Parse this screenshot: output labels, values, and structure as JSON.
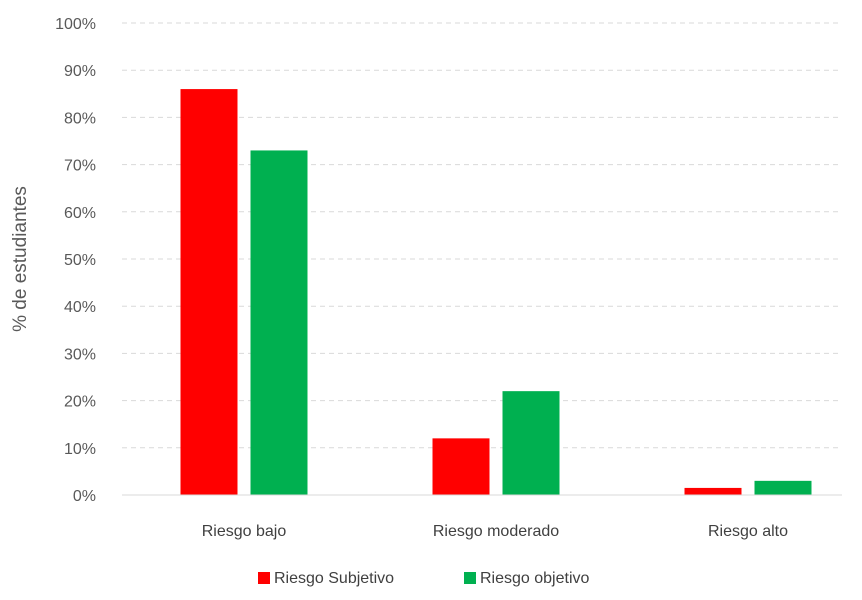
{
  "chart_data": {
    "type": "bar",
    "title": "",
    "xlabel": "",
    "ylabel": "% de estudiantes",
    "ylim": [
      0,
      100
    ],
    "yticks": [
      "0%",
      "10%",
      "20%",
      "30%",
      "40%",
      "50%",
      "60%",
      "70%",
      "80%",
      "90%",
      "100%"
    ],
    "yticks_values": [
      0,
      10,
      20,
      30,
      40,
      50,
      60,
      70,
      80,
      90,
      100
    ],
    "categories": [
      "Riesgo bajo",
      "Riesgo moderado",
      "Riesgo alto"
    ],
    "series": [
      {
        "name": "Riesgo Subjetivo",
        "color": "#ff0000",
        "values": [
          86,
          12,
          1.5
        ]
      },
      {
        "name": "Riesgo objetivo",
        "color": "#00b050",
        "values": [
          73,
          22,
          3
        ]
      }
    ],
    "grid": true,
    "grid_style": "dashed",
    "legend_position": "bottom"
  }
}
